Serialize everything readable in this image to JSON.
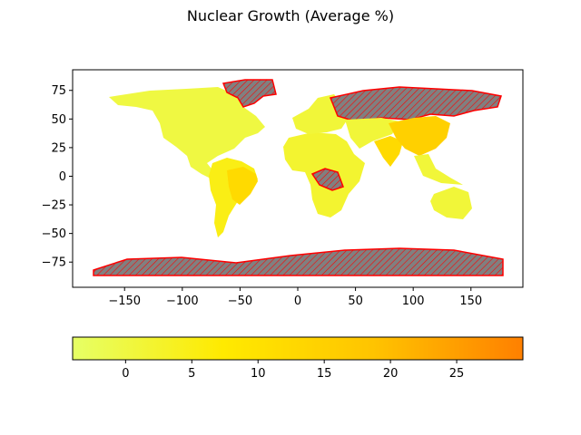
{
  "title": "Nuclear Growth (Average %)",
  "colors": {
    "missing_fill": "#808080",
    "missing_edge": "#ff0000",
    "cmap_stops": [
      "#e6ff66",
      "#ffea00",
      "#ffc400",
      "#ff8000"
    ]
  },
  "map": {
    "x_ticks": [
      "−150",
      "−100",
      "−50",
      "0",
      "50",
      "100",
      "150"
    ],
    "x_tick_values": [
      -150,
      -100,
      -50,
      0,
      50,
      100,
      150
    ],
    "y_ticks": [
      "75",
      "50",
      "25",
      "0",
      "−25",
      "−50",
      "−75"
    ],
    "y_tick_values": [
      75,
      50,
      25,
      0,
      -25,
      -50,
      -75
    ],
    "xlim": [
      -195,
      195
    ],
    "ylim": [
      -97,
      93
    ]
  },
  "colorbar": {
    "orientation": "horizontal",
    "range": [
      -4,
      30
    ],
    "ticks": [
      "0",
      "5",
      "10",
      "15",
      "20",
      "25"
    ],
    "tick_values": [
      0,
      5,
      10,
      15,
      20,
      25
    ]
  },
  "chart_data": {
    "type": "choropleth",
    "title": "Nuclear Growth (Average %)",
    "missing_data_style": "grey with red hatching",
    "regions": [
      {
        "region": "North America",
        "value": 0
      },
      {
        "region": "Greenland",
        "value": null
      },
      {
        "region": "Brazil",
        "value": 12
      },
      {
        "region": "Argentina",
        "value": 5
      },
      {
        "region": "Europe",
        "value": 1
      },
      {
        "region": "Russia",
        "value": null
      },
      {
        "region": "Africa",
        "value": 2
      },
      {
        "region": "Central Africa",
        "value": null
      },
      {
        "region": "India",
        "value": 12
      },
      {
        "region": "China",
        "value": 15
      },
      {
        "region": "Australia",
        "value": 1
      },
      {
        "region": "Antarctica",
        "value": null
      }
    ]
  }
}
